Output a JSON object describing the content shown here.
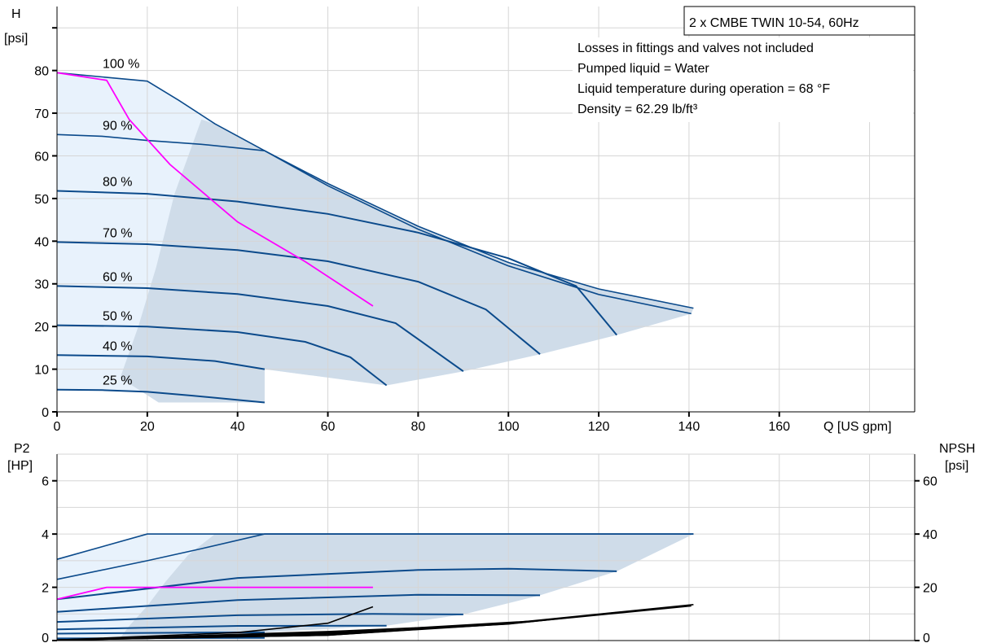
{
  "title": "2 x CMBE TWIN 10-54, 60Hz",
  "notes": [
    "Losses in fittings and valves not included",
    "Pumped liquid = Water",
    "Liquid temperature during operation = 68 °F",
    "Density = 62.29 lb/ft³"
  ],
  "colors": {
    "curve": "#0b4a8b",
    "duty": "#ff00ff",
    "npsh": "#000000",
    "fill_outer": "#e8f2fc",
    "fill_inner": "#cfdce9",
    "grid": "#d6d6d6"
  },
  "chart_data": [
    {
      "type": "line",
      "id": "head",
      "xlabel": "Q [US gpm]",
      "ylabel_line1": "H",
      "ylabel_line2": "[psi]",
      "xlim": [
        0,
        190
      ],
      "ylim": [
        0,
        95
      ],
      "xticks": [
        0,
        20,
        40,
        60,
        80,
        100,
        120,
        140,
        160
      ],
      "yticks": [
        0,
        10,
        20,
        30,
        40,
        50,
        60,
        70,
        80
      ],
      "grid": true,
      "series": [
        {
          "name": "100 %",
          "points": [
            [
              0,
              79.5
            ],
            [
              20,
              77.5
            ],
            [
              27,
              73
            ],
            [
              35,
              67.5
            ],
            [
              46,
              61.2
            ],
            [
              60,
              53.5
            ],
            [
              80,
              43.5
            ],
            [
              100,
              35
            ],
            [
              120,
              28.8
            ],
            [
              141,
              24.3
            ]
          ]
        },
        {
          "name": "90 %",
          "points": [
            [
              0,
              65
            ],
            [
              10,
              64.6
            ],
            [
              20,
              63.6
            ],
            [
              32,
              62.7
            ],
            [
              46,
              61.2
            ],
            [
              60,
              53
            ],
            [
              80,
              42.8
            ],
            [
              100,
              34.2
            ],
            [
              120,
              27.5
            ],
            [
              140.5,
              23
            ]
          ]
        },
        {
          "name": "80 %",
          "points": [
            [
              0,
              51.8
            ],
            [
              20,
              51.1
            ],
            [
              40,
              49.3
            ],
            [
              60,
              46.4
            ],
            [
              80,
              42
            ],
            [
              100,
              36
            ],
            [
              115,
              29.5
            ],
            [
              124,
              18
            ]
          ]
        },
        {
          "name": "70 %",
          "points": [
            [
              0,
              39.8
            ],
            [
              20,
              39.3
            ],
            [
              40,
              37.9
            ],
            [
              60,
              35.3
            ],
            [
              80,
              30.5
            ],
            [
              95,
              24
            ],
            [
              107,
              13.5
            ]
          ]
        },
        {
          "name": "60 %",
          "points": [
            [
              0,
              29.5
            ],
            [
              20,
              29
            ],
            [
              40,
              27.6
            ],
            [
              60,
              24.8
            ],
            [
              75,
              20.8
            ],
            [
              90,
              9.5
            ]
          ]
        },
        {
          "name": "50 %",
          "points": [
            [
              0,
              20.3
            ],
            [
              20,
              20
            ],
            [
              40,
              18.7
            ],
            [
              55,
              16.4
            ],
            [
              65,
              12.8
            ],
            [
              73,
              6.2
            ]
          ]
        },
        {
          "name": "40 %",
          "points": [
            [
              0,
              13.3
            ],
            [
              20,
              13
            ],
            [
              35,
              11.9
            ],
            [
              46,
              10
            ]
          ]
        },
        {
          "name": "25 %",
          "points": [
            [
              0,
              5.2
            ],
            [
              10,
              5.1
            ],
            [
              20,
              4.7
            ],
            [
              30,
              3.8
            ],
            [
              46,
              2.2
            ]
          ]
        }
      ],
      "duty_point_curve": [
        [
          0,
          79.5
        ],
        [
          11,
          77.7
        ],
        [
          16,
          68.5
        ],
        [
          25,
          58
        ],
        [
          40,
          44.5
        ],
        [
          55,
          35.2
        ],
        [
          70,
          24.8
        ]
      ]
    },
    {
      "type": "line",
      "id": "power",
      "ylabel_line1": "P2",
      "ylabel_line2": "[HP]",
      "y2label_line1": "NPSH",
      "y2label_line2": "[psi]",
      "xlim": [
        0,
        190
      ],
      "ylim": [
        0,
        7
      ],
      "y2lim": [
        0,
        70
      ],
      "yticks": [
        0,
        2,
        4,
        6
      ],
      "y2ticks": [
        0,
        20,
        40,
        60
      ],
      "grid": true,
      "p2_series": [
        {
          "name": "100 %",
          "points": [
            [
              0,
              3.05
            ],
            [
              20,
              4
            ],
            [
              60,
              4
            ],
            [
              100,
              4
            ],
            [
              141,
              4
            ]
          ]
        },
        {
          "name": "90 %",
          "points": [
            [
              0,
              2.3
            ],
            [
              20,
              3
            ],
            [
              32,
              3.45
            ],
            [
              46,
              4
            ],
            [
              100,
              4
            ],
            [
              141,
              4
            ]
          ]
        },
        {
          "name": "80 %",
          "points": [
            [
              0,
              1.55
            ],
            [
              40,
              2.35
            ],
            [
              80,
              2.65
            ],
            [
              100,
              2.7
            ],
            [
              124,
              2.6
            ]
          ]
        },
        {
          "name": "70 %",
          "points": [
            [
              0,
              1.08
            ],
            [
              40,
              1.52
            ],
            [
              80,
              1.72
            ],
            [
              107,
              1.7
            ]
          ]
        },
        {
          "name": "60 %",
          "points": [
            [
              0,
              0.7
            ],
            [
              40,
              0.95
            ],
            [
              70,
              1.0
            ],
            [
              90,
              0.98
            ]
          ]
        },
        {
          "name": "50 %",
          "points": [
            [
              0,
              0.42
            ],
            [
              40,
              0.55
            ],
            [
              73,
              0.56
            ]
          ]
        },
        {
          "name": "40 %",
          "points": [
            [
              0,
              0.26
            ],
            [
              30,
              0.3
            ],
            [
              46,
              0.31
            ]
          ]
        },
        {
          "name": "25 %",
          "points": [
            [
              0,
              0.08
            ],
            [
              46,
              0.1
            ]
          ]
        }
      ],
      "duty_p2": [
        [
          0,
          1.55
        ],
        [
          11,
          2
        ],
        [
          40,
          2
        ],
        [
          70,
          2
        ]
      ],
      "npsh_series": [
        {
          "name": "100 %",
          "points": [
            [
              0,
              0.2
            ],
            [
              60,
              2
            ],
            [
              100,
              6.5
            ],
            [
              141,
              13.5
            ]
          ]
        },
        {
          "name": "90 %",
          "points": [
            [
              0,
              0.2
            ],
            [
              60,
              2
            ],
            [
              100,
              6.3
            ],
            [
              140.5,
              13
            ]
          ]
        },
        {
          "name": "80 %",
          "points": [
            [
              0,
              0.2
            ],
            [
              60,
              2.4
            ],
            [
              100,
              6.2
            ],
            [
              124,
              10.5
            ]
          ]
        },
        {
          "name": "70 %",
          "points": [
            [
              0,
              0.2
            ],
            [
              60,
              2.8
            ],
            [
              107,
              7.5
            ]
          ]
        },
        {
          "name": "60 %",
          "points": [
            [
              0,
              0.2
            ],
            [
              60,
              3.4
            ],
            [
              90,
              5.5
            ]
          ]
        },
        {
          "name": "50 %",
          "points": [
            [
              0,
              0.2
            ],
            [
              50,
              2.7
            ],
            [
              73,
              3.5
            ]
          ]
        },
        {
          "name": "duty",
          "points": [
            [
              0,
              0.2
            ],
            [
              40,
              3
            ],
            [
              60,
              6.5
            ],
            [
              70,
              12.7
            ]
          ]
        }
      ]
    }
  ]
}
